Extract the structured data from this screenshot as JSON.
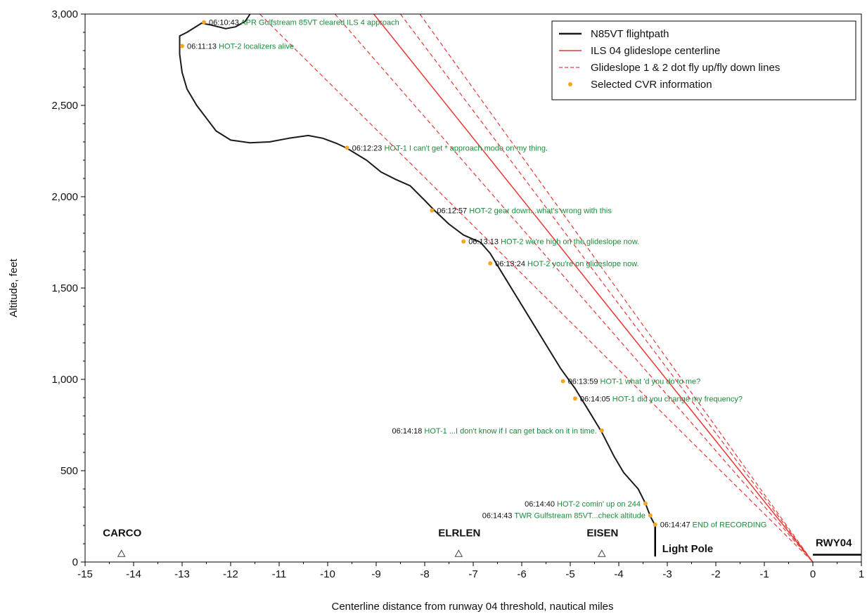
{
  "colors": {
    "flightpath": "#1a1a1a",
    "glideslope": "#e53935",
    "cvr_marker": "#f5a623",
    "cvr_text": "#1e8a3c"
  },
  "chart_data": {
    "type": "line",
    "xlabel": "Centerline distance from runway 04 threshold, nautical miles",
    "ylabel": "Altitude, feet",
    "xlim": [
      -15,
      1
    ],
    "ylim": [
      0,
      3000
    ],
    "x_ticks": [
      -15,
      -14,
      -13,
      -12,
      -11,
      -10,
      -9,
      -8,
      -7,
      -6,
      -5,
      -4,
      -3,
      -2,
      -1,
      0,
      1
    ],
    "y_ticks": [
      0,
      500,
      1000,
      1500,
      2000,
      2500,
      3000
    ],
    "y_tick_labels": [
      "0",
      "500",
      "1,000",
      "1,500",
      "2,000",
      "2,500",
      "3,000"
    ],
    "grid": false,
    "legend_position": "top-right",
    "legend": [
      {
        "label": "N85VT flightpath",
        "style": "solid-black"
      },
      {
        "label": "ILS 04 glideslope centerline",
        "style": "solid-red"
      },
      {
        "label": "Glideslope 1 & 2 dot fly up/fly down lines",
        "style": "dashed-red"
      },
      {
        "label": "Selected CVR information",
        "style": "orange-dot"
      }
    ],
    "series": [
      {
        "name": "N85VT flightpath",
        "x": [
          -11.6,
          -11.7,
          -11.9,
          -12.1,
          -12.4,
          -12.6,
          -12.9,
          -13.05,
          -13.05,
          -13.0,
          -12.9,
          -12.7,
          -12.5,
          -12.3,
          -12.0,
          -11.6,
          -11.2,
          -10.8,
          -10.4,
          -10.1,
          -9.8,
          -9.6,
          -9.2,
          -8.9,
          -8.6,
          -8.3,
          -8.0,
          -7.8,
          -7.5,
          -7.2,
          -6.85,
          -6.65,
          -6.4,
          -6.1,
          -5.8,
          -5.5,
          -5.2,
          -4.9,
          -4.6,
          -4.35,
          -4.1,
          -3.9,
          -3.6,
          -3.45,
          -3.35,
          -3.25
        ],
        "y": [
          3000,
          2960,
          2930,
          2920,
          2940,
          2950,
          2900,
          2880,
          2780,
          2680,
          2590,
          2500,
          2430,
          2360,
          2310,
          2295,
          2300,
          2320,
          2335,
          2320,
          2290,
          2265,
          2200,
          2135,
          2095,
          2060,
          1980,
          1925,
          1850,
          1790,
          1750,
          1690,
          1580,
          1450,
          1320,
          1190,
          1060,
          950,
          820,
          710,
          580,
          490,
          400,
          320,
          250,
          200
        ]
      },
      {
        "name": "ILS 04 glideslope centerline",
        "x": [
          -9.05,
          0
        ],
        "y": [
          3000,
          0
        ]
      }
    ],
    "glideslope_dot_lines": [
      {
        "x": [
          -9.85,
          0
        ],
        "y": [
          3000,
          0
        ]
      },
      {
        "x": [
          -11.4,
          0
        ],
        "y": [
          3000,
          0
        ]
      },
      {
        "x": [
          -8.5,
          0
        ],
        "y": [
          3000,
          0
        ]
      },
      {
        "x": [
          -8.1,
          0
        ],
        "y": [
          3000,
          0
        ]
      }
    ],
    "cvr_points": [
      {
        "x": -12.55,
        "y": 2955,
        "time": "06:10:43",
        "text": "APR Gulfstream 85VT cleared ILS 4 approach",
        "side": "right"
      },
      {
        "x": -13.0,
        "y": 2825,
        "time": "06:11:13",
        "text": "HOT-2 localizers alive",
        "side": "right"
      },
      {
        "x": -9.6,
        "y": 2268,
        "time": "06:12:23",
        "text": "HOT-1 I can't get * approach mode on my thing.",
        "side": "right"
      },
      {
        "x": -7.85,
        "y": 1925,
        "time": "06:12:57",
        "text": "HOT-2 gear down...what's wrong with this",
        "side": "right"
      },
      {
        "x": -7.2,
        "y": 1755,
        "time": "06:13:13",
        "text": "HOT-2 we're high on the glideslope now.",
        "side": "right"
      },
      {
        "x": -6.65,
        "y": 1635,
        "time": "06:13:24",
        "text": "HOT-2 you're on glideslope now.",
        "side": "right"
      },
      {
        "x": -5.15,
        "y": 990,
        "time": "06:13:59",
        "text": "HOT-1 what 'd you do to me?",
        "side": "right"
      },
      {
        "x": -4.9,
        "y": 895,
        "time": "06:14:05",
        "text": "HOT-1 did you change my frequency?",
        "side": "right"
      },
      {
        "x": -4.35,
        "y": 720,
        "time": "06:14:18",
        "text": "HOT-1 ...I don't know if I can get back on it in time.",
        "side": "left"
      },
      {
        "x": -3.45,
        "y": 320,
        "time": "06:14:40",
        "text": "HOT-2 comin' up on 244",
        "side": "left"
      },
      {
        "x": -3.35,
        "y": 255,
        "time": "06:14:43",
        "text": "TWR Gulfstream 85VT...check altitude",
        "side": "left"
      },
      {
        "x": -3.25,
        "y": 205,
        "time": "06:14:47",
        "text": "END of RECORDING",
        "side": "right"
      }
    ],
    "waypoints": [
      {
        "name": "CARCO",
        "x": -14.25,
        "y": 45
      },
      {
        "name": "ELRLEN",
        "x": -7.3,
        "y": 45
      },
      {
        "name": "EISEN",
        "x": -4.35,
        "y": 45
      }
    ],
    "annotations": [
      {
        "text": "Light Pole",
        "x": -3.25,
        "top": 200,
        "bottom": 30
      },
      {
        "text": "RWY04",
        "x": 0,
        "x_end": 1,
        "y": 40
      }
    ]
  }
}
